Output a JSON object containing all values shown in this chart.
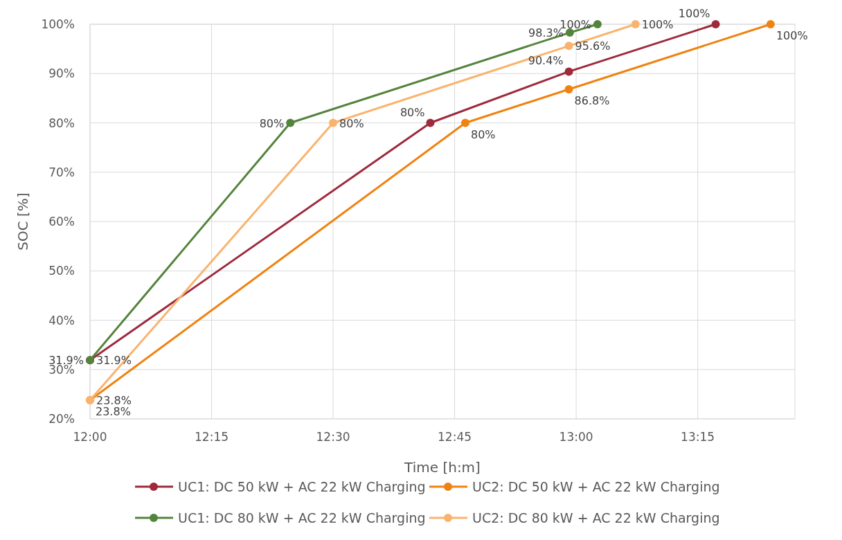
{
  "chart_data": {
    "type": "line",
    "xlabel": "Time [h:m]",
    "ylabel": "SOC [%]",
    "xlim": [
      12,
      13.45
    ],
    "ylim": [
      20,
      100
    ],
    "xticks": [
      {
        "value": 12,
        "label": "12:00"
      },
      {
        "value": 12.25,
        "label": "12:15"
      },
      {
        "value": 12.5,
        "label": "12:30"
      },
      {
        "value": 12.75,
        "label": "12:45"
      },
      {
        "value": 13,
        "label": "13:00"
      },
      {
        "value": 13.25,
        "label": "13:15"
      }
    ],
    "yticks": [
      {
        "value": 20,
        "label": "20%"
      },
      {
        "value": 30,
        "label": "30%"
      },
      {
        "value": 40,
        "label": "40%"
      },
      {
        "value": 50,
        "label": "50%"
      },
      {
        "value": 60,
        "label": "60%"
      },
      {
        "value": 70,
        "label": "70%"
      },
      {
        "value": 80,
        "label": "80%"
      },
      {
        "value": 90,
        "label": "90%"
      },
      {
        "value": 100,
        "label": "100%"
      }
    ],
    "grid": true,
    "legend": "bottom",
    "marker": "circle",
    "series": [
      {
        "name": "UC1: DC 50 kW + AC 22 kW Charging",
        "color": "#9e2a3c",
        "x": [
          12,
          12.7,
          12.985,
          13.287
        ],
        "values": [
          31.9,
          80,
          90.4,
          100
        ],
        "value_labels": [
          "31.9%",
          "80%",
          "90.4%",
          "100%"
        ]
      },
      {
        "name": "UC2: DC 50 kW + AC 22 kW Charging",
        "color": "#f0820f",
        "x": [
          12,
          12.772,
          12.985,
          13.4
        ],
        "values": [
          23.8,
          80,
          86.8,
          100
        ],
        "value_labels": [
          "23.8%",
          "80%",
          "86.8%",
          "100%"
        ]
      },
      {
        "name": "UC1: DC 80 kW + AC 22 kW Charging",
        "color": "#54843c",
        "x": [
          12,
          12.412,
          12.987,
          13.044
        ],
        "values": [
          31.9,
          80,
          98.3,
          100
        ],
        "value_labels": [
          "31.9%",
          "80%",
          "98.3%",
          "100%"
        ]
      },
      {
        "name": "UC2: DC 80 kW + AC 22 kW Charging",
        "color": "#f9b36e",
        "x": [
          12,
          12.5,
          12.985,
          13.122
        ],
        "values": [
          23.8,
          80,
          95.6,
          100
        ],
        "value_labels": [
          "23.8%",
          "80%",
          "95.6%",
          "100%"
        ]
      }
    ]
  }
}
